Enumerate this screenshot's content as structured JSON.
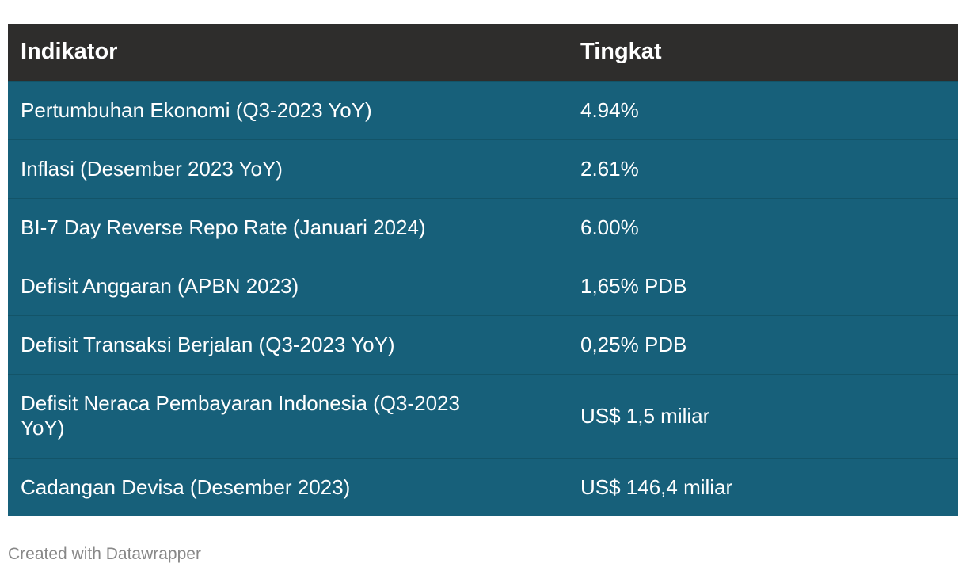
{
  "chart_data": {
    "type": "table",
    "columns": [
      "Indikator",
      "Tingkat"
    ],
    "rows": [
      [
        "Pertumbuhan Ekonomi (Q3-2023 YoY)",
        "4.94%"
      ],
      [
        "Inflasi (Desember 2023 YoY)",
        "2.61%"
      ],
      [
        "BI-7 Day Reverse Repo Rate (Januari 2024)",
        "6.00%"
      ],
      [
        "Defisit Anggaran (APBN 2023)",
        "1,65% PDB"
      ],
      [
        "Defisit Transaksi Berjalan (Q3-2023 YoY)",
        "0,25% PDB"
      ],
      [
        "Defisit Neraca Pembayaran Indonesia (Q3-2023 YoY)",
        "US$ 1,5 miliar"
      ],
      [
        "Cadangan Devisa (Desember 2023)",
        "US$ 146,4 miliar"
      ]
    ]
  },
  "footer": {
    "credit": "Created with Datawrapper"
  },
  "colors": {
    "header_background": "#2e2d2c",
    "row_background": "#17607a",
    "text": "#ffffff",
    "credit_text": "#888888"
  }
}
